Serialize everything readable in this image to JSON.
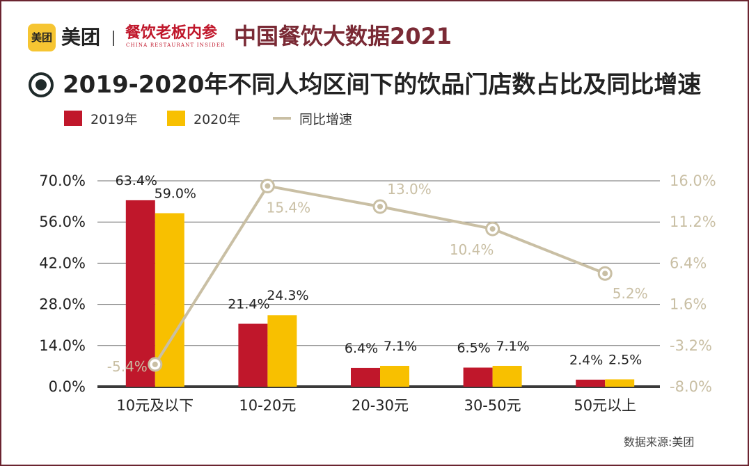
{
  "header": {
    "brand_logo_text": "美团",
    "brand_name": "美团",
    "partner_name": "餐饮老板内参",
    "partner_subtitle": "CHINA RESTAURANT INSIDER",
    "title": "中国餐饮大数据2021"
  },
  "colors": {
    "bar_2019": "#c0172b",
    "bar_2020": "#f8c000",
    "growth_line": "#c9bfa4",
    "accent": "#7a2a35"
  },
  "legend": {
    "series_2019": "2019年",
    "series_2020": "2020年",
    "growth": "同比增速"
  },
  "source": "数据来源:美团",
  "chart_data": {
    "type": "bar",
    "title": "2019-2020年不同人均区间下的饮品门店数占比及同比增速",
    "categories": [
      "10元及以下",
      "10-20元",
      "20-30元",
      "30-50元",
      "50元以上"
    ],
    "series": [
      {
        "name": "2019年",
        "values": [
          63.4,
          21.4,
          6.4,
          6.5,
          2.4
        ],
        "labels": [
          "63.4%",
          "21.4%",
          "6.4%",
          "6.5%",
          "2.4%"
        ]
      },
      {
        "name": "2020年",
        "values": [
          59.0,
          24.3,
          7.1,
          7.1,
          2.5
        ],
        "labels": [
          "59.0%",
          "24.3%",
          "7.1%",
          "7.1%",
          "2.5%"
        ]
      }
    ],
    "line_series": {
      "name": "同比增速",
      "axis": "right",
      "values": [
        -5.4,
        15.4,
        13.0,
        10.4,
        5.2
      ],
      "labels": [
        "-5.4%",
        "15.4%",
        "13.0%",
        "10.4%",
        "5.2%"
      ]
    },
    "ylim": [
      0,
      70
    ],
    "y_ticks": [
      "0.0%",
      "14.0%",
      "28.0%",
      "42.0%",
      "56.0%",
      "70.0%"
    ],
    "y2lim": [
      -8.0,
      16.0
    ],
    "y2_ticks": [
      "-8.0%",
      "-3.2%",
      "1.6%",
      "6.4%",
      "11.2%",
      "16.0%"
    ],
    "grid": true,
    "legend_position": "top-left"
  }
}
